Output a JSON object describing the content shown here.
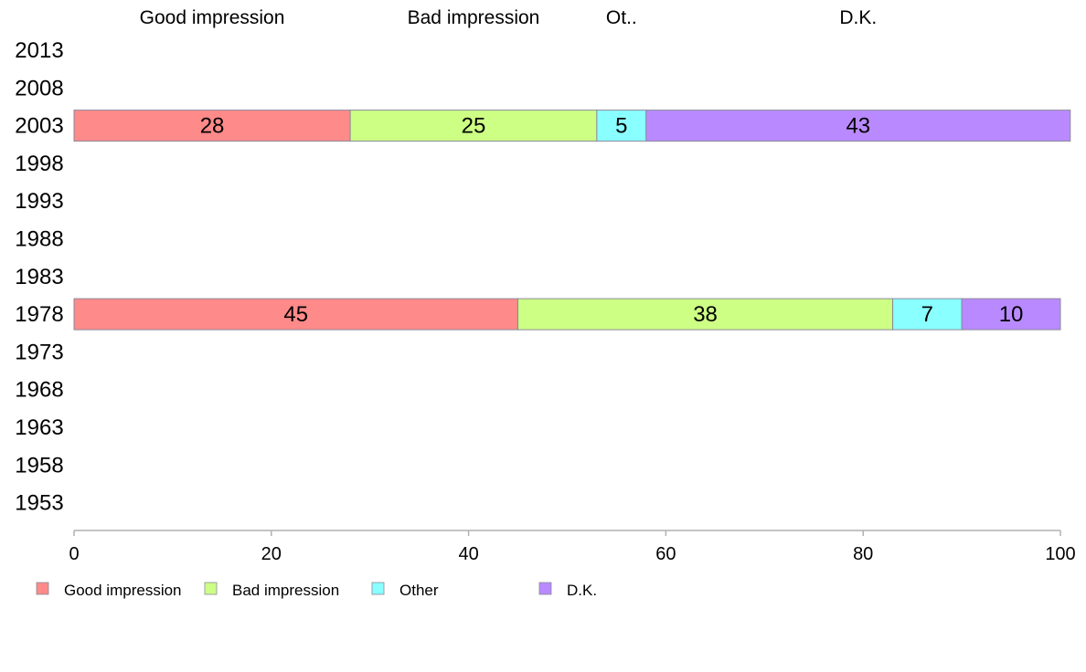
{
  "chart_data": {
    "type": "bar",
    "orientation": "horizontal",
    "stacked": true,
    "categories": [
      "2013",
      "2008",
      "2003",
      "1998",
      "1993",
      "1988",
      "1983",
      "1978",
      "1973",
      "1968",
      "1963",
      "1958",
      "1953"
    ],
    "series": [
      {
        "name": "Good impression",
        "header": "Good impression",
        "color": "#ff8a8a",
        "values": [
          null,
          null,
          28,
          null,
          null,
          null,
          null,
          45,
          null,
          null,
          null,
          null,
          null
        ]
      },
      {
        "name": "Bad impression",
        "header": "Bad impression",
        "color": "#cdff85",
        "values": [
          null,
          null,
          25,
          null,
          null,
          null,
          null,
          38,
          null,
          null,
          null,
          null,
          null
        ]
      },
      {
        "name": "Other",
        "header": "Ot..",
        "color": "#8affff",
        "values": [
          null,
          null,
          5,
          null,
          null,
          null,
          null,
          7,
          null,
          null,
          null,
          null,
          null
        ]
      },
      {
        "name": "D.K.",
        "header": "D.K.",
        "color": "#b98aff",
        "values": [
          null,
          null,
          43,
          null,
          null,
          null,
          null,
          10,
          null,
          null,
          null,
          null,
          null
        ]
      }
    ],
    "xlim": [
      0,
      100
    ],
    "xticks": [
      0,
      20,
      40,
      60,
      80,
      100
    ],
    "grid": false,
    "legend_position": "bottom-left"
  }
}
